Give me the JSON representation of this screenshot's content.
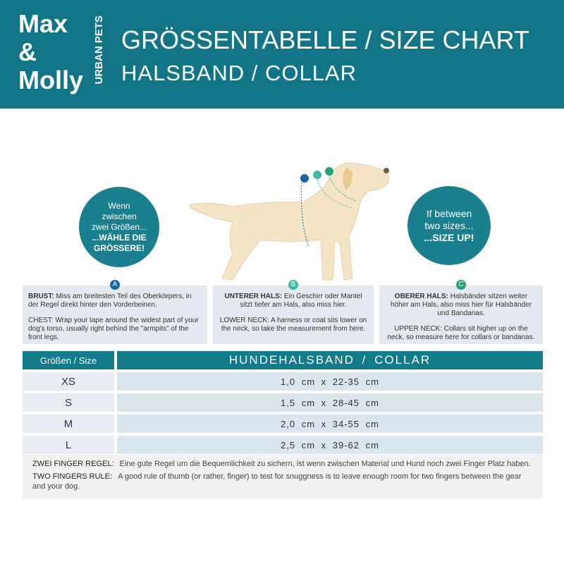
{
  "brand": {
    "line1": "Max",
    "line2": "&",
    "line3": "Molly",
    "tagline": "URBAN PETS"
  },
  "header": {
    "title": "GRÖSSENTABELLE / SIZE CHART",
    "subtitle": "HALSBAND / COLLAR"
  },
  "tip_de": {
    "line1": "Wenn",
    "line2": "zwischen",
    "line3": "zwei Größen...",
    "line4": "...WÄHLE DIE",
    "line5": "GRÖSSERE!"
  },
  "tip_en": {
    "line1": "If between",
    "line2": "two sizes...",
    "line3": "...SIZE UP!"
  },
  "colors": {
    "teal": "#117587",
    "A": "#1565a8",
    "B": "#3fb8a6",
    "C": "#2aa07a",
    "dog": "#f5e4c6"
  },
  "measurements": [
    {
      "badge": "A",
      "de_key": "BRUST:",
      "de": "Miss am breitesten Teil des Oberkörpers, in der Regel direkt hinter den Vorderbeinen.",
      "en": "CHEST: Wrap your tape around the widest part of your dog's torso, usually right behind the \"armpits\" of the front legs."
    },
    {
      "badge": "B",
      "de_key": "UNTERER HALS:",
      "de": "Ein Geschirr oder Mantel sitzt tiefer am Hals, also miss hier.",
      "en": "LOWER NECK: A harness or coat sits lower on the neck, so take the measurement from here."
    },
    {
      "badge": "C",
      "de_key": "OBERER HALS:",
      "de": "Halsbänder sitzen weiter höher am Hals, also miss hier für Halsbänder und Bandanas.",
      "en": "UPPER NECK: Collars sit higher up on the neck, so measure here for collars or bandanas."
    }
  ],
  "table": {
    "headers": [
      "Größen / Size",
      "HUNDEHALSBAND / COLLAR"
    ],
    "rows": [
      [
        "XS",
        "1,0 cm x 22-35 cm"
      ],
      [
        "S",
        "1,5 cm x 28-45 cm"
      ],
      [
        "M",
        "2,0 cm x 34-55 cm"
      ],
      [
        "L",
        "2,5 cm x 39-62 cm"
      ]
    ]
  },
  "rule": {
    "de_key": "ZWEI FINGER REGEL:",
    "de": "Eine gute Regel um die Bequemlichkeit zu sichern, ist wenn zwischen Material und Hund noch zwei Finger Platz haben.",
    "en_key": "TWO FINGERS RULE:",
    "en": "A good rule of thumb (or rather, finger) to test for snuggness is to leave enough room for two fingers between the gear and your dog."
  }
}
